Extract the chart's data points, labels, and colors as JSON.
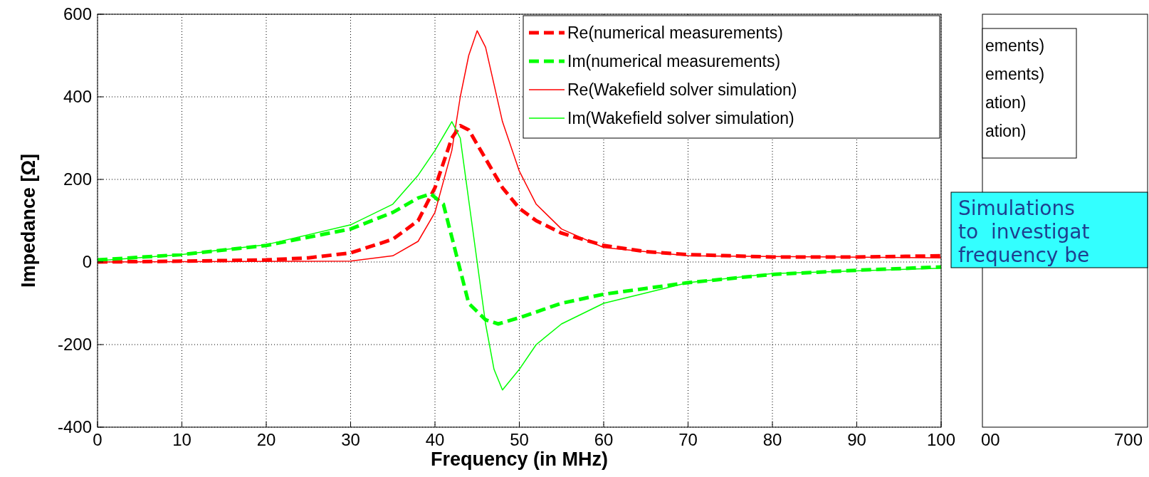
{
  "chart_data": [
    {
      "type": "line",
      "xlabel": "Frequency (in MHz)",
      "ylabel": "Impedance [Ω]",
      "xlim": [
        0,
        100
      ],
      "ylim": [
        -400,
        600
      ],
      "xticks": [
        0,
        10,
        20,
        30,
        40,
        50,
        60,
        70,
        80,
        90,
        100
      ],
      "yticks": [
        -400,
        -200,
        0,
        200,
        400,
        600
      ],
      "grid": true,
      "legend": "top right",
      "marker": "none",
      "series": [
        {
          "name": "Re(numerical measurements)",
          "color": "#ff0000",
          "line_style": "dashed",
          "x": [
            0,
            10,
            20,
            25,
            30,
            35,
            38,
            40,
            42,
            43,
            44,
            46,
            48,
            50,
            52,
            55,
            60,
            65,
            70,
            80,
            90,
            100
          ],
          "values": [
            0,
            2,
            5,
            10,
            22,
            55,
            100,
            180,
            300,
            330,
            320,
            250,
            180,
            130,
            100,
            70,
            40,
            25,
            18,
            12,
            12,
            15
          ]
        },
        {
          "name": "Im(numerical measurements)",
          "color": "#00ff00",
          "line_style": "dashed",
          "x": [
            0,
            10,
            20,
            30,
            35,
            38,
            39.5,
            41,
            42,
            43,
            44,
            46,
            47.5,
            50,
            55,
            60,
            70,
            80,
            90,
            100
          ],
          "values": [
            5,
            18,
            40,
            80,
            120,
            155,
            165,
            140,
            60,
            -20,
            -100,
            -140,
            -150,
            -135,
            -100,
            -78,
            -50,
            -30,
            -20,
            -12
          ]
        },
        {
          "name": "Re(Wakefield solver simulation)",
          "color": "#ff0000",
          "line_style": "solid",
          "x": [
            0,
            30,
            35,
            38,
            40,
            42,
            43,
            44,
            45,
            46,
            47,
            48,
            50,
            52,
            55,
            60,
            70,
            100
          ],
          "values": [
            0,
            2,
            15,
            50,
            120,
            270,
            400,
            500,
            560,
            520,
            430,
            340,
            220,
            140,
            80,
            35,
            15,
            10
          ]
        },
        {
          "name": "Im(Wakefield solver simulation)",
          "color": "#00ff00",
          "line_style": "solid",
          "x": [
            0,
            10,
            20,
            30,
            35,
            38,
            40,
            42,
            43,
            44,
            45,
            46,
            47,
            48,
            50,
            52,
            55,
            60,
            70,
            80,
            100
          ],
          "values": [
            3,
            18,
            42,
            90,
            140,
            210,
            270,
            340,
            300,
            150,
            0,
            -150,
            -260,
            -310,
            -260,
            -200,
            -150,
            -100,
            -50,
            -28,
            -15
          ]
        }
      ]
    },
    {
      "type": "other",
      "annotations": [
        "ements)",
        "ements)",
        "ation)",
        "ation)",
        "Simulations",
        "to  investigat",
        "frequency be",
        "00",
        "700"
      ]
    }
  ]
}
